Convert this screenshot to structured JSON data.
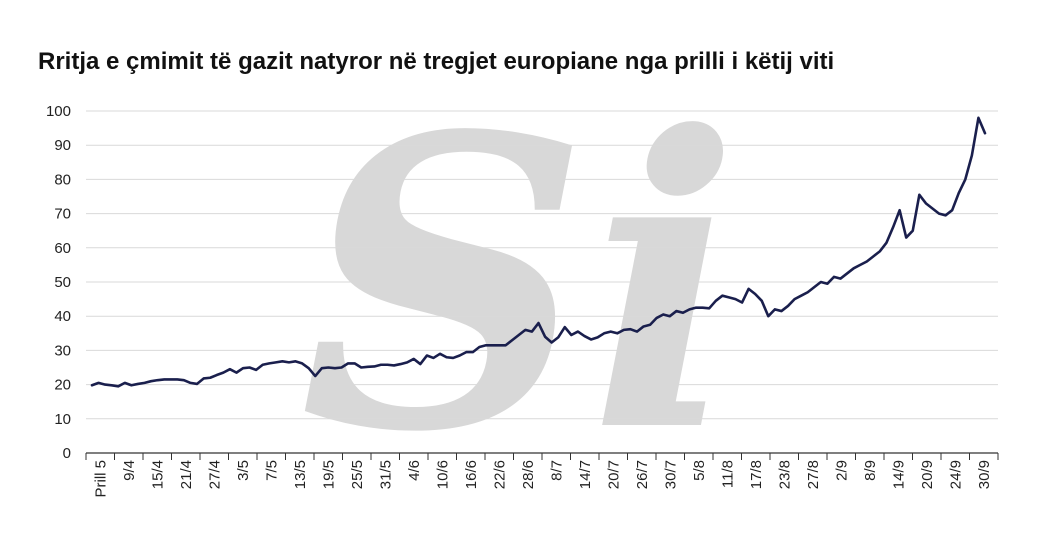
{
  "title": "Rritja e çmimit të gazit natyror në tregjet europiane nga prilli i këtij viti",
  "watermark": {
    "text": "Si"
  },
  "colors": {
    "line": "#1a1f4d",
    "grid": "#d9d9d9",
    "axis": "#333333",
    "watermark": "#d8d8d8"
  },
  "chart_data": {
    "type": "line",
    "title": "Rritja e çmimit të gazit natyror në tregjet europiane nga prilli i këtij viti",
    "xlabel": "",
    "ylabel": "",
    "ylim": [
      0,
      100
    ],
    "yticks": [
      0,
      10,
      20,
      30,
      40,
      50,
      60,
      70,
      80,
      90,
      100
    ],
    "grid": true,
    "legend": "none",
    "x_tick_labels": [
      "Prill 5",
      "9/4",
      "15/4",
      "21/4",
      "27/4",
      "3/5",
      "7/5",
      "13/5",
      "19/5",
      "25/5",
      "31/5",
      "4/6",
      "10/6",
      "16/6",
      "22/6",
      "28/6",
      "8/7",
      "14/7",
      "20/7",
      "26/7",
      "30/7",
      "5/8",
      "11/8",
      "17/8",
      "23/8",
      "27/8",
      "2/9",
      "8/9",
      "14/9",
      "20/9",
      "24/9",
      "30/9"
    ],
    "series": [
      {
        "values": [
          19.8,
          20.5,
          20.0,
          19.8,
          19.5,
          20.5,
          19.8,
          20.2,
          20.5,
          21.0,
          21.3,
          21.5,
          21.5,
          21.5,
          21.3,
          20.5,
          20.2,
          21.8,
          22.0,
          22.8,
          23.5,
          24.5,
          23.5,
          24.8,
          25.0,
          24.3,
          25.8,
          26.2,
          26.5,
          26.8,
          26.5,
          26.8,
          26.2,
          24.8,
          22.5,
          24.8,
          25.0,
          24.8,
          25.0,
          26.2,
          26.2,
          25.0,
          25.2,
          25.3,
          25.8,
          25.8,
          25.6,
          26.0,
          26.5,
          27.5,
          26.0,
          28.5,
          27.8,
          29.0,
          28.0,
          27.8,
          28.5,
          29.5,
          29.5,
          31.0,
          31.5,
          31.5,
          31.5,
          31.5,
          33.0,
          34.5,
          36.0,
          35.5,
          38.0,
          34.0,
          32.3,
          33.8,
          36.8,
          34.5,
          35.5,
          34.2,
          33.2,
          33.8,
          35.0,
          35.5,
          35.0,
          36.0,
          36.2,
          35.5,
          37.0,
          37.5,
          39.5,
          40.5,
          40.0,
          41.5,
          41.0,
          42.0,
          42.5,
          42.5,
          42.3,
          44.5,
          46.0,
          45.5,
          45.0,
          44.0,
          48.0,
          46.5,
          44.5,
          40.0,
          42.0,
          41.5,
          43.0,
          45.0,
          46.0,
          47.0,
          48.5,
          50.0,
          49.5,
          51.5,
          51.0,
          52.5,
          54.0,
          55.0,
          56.0,
          57.5,
          59.0,
          61.5,
          66.0,
          71.0,
          63.0,
          65.0,
          75.5,
          73.0,
          71.5,
          70.0,
          69.5,
          71.0,
          76.0,
          80.0,
          87.0,
          98.0,
          93.5
        ]
      }
    ]
  }
}
